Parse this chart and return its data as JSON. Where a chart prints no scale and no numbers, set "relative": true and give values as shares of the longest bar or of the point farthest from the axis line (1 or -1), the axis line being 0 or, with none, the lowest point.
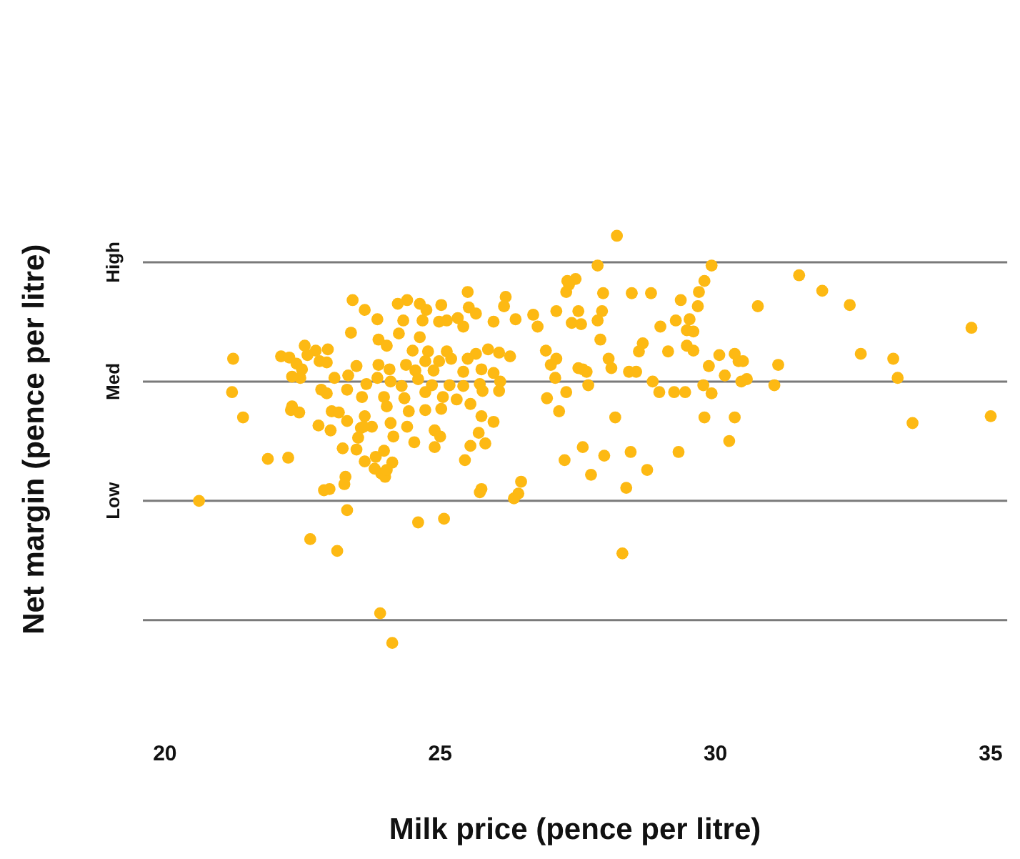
{
  "chart_data": {
    "type": "scatter",
    "xlabel": "Milk price (pence per litre)",
    "ylabel": "Net margin (pence per litre)",
    "xlim": [
      19.6,
      35.3
    ],
    "xticks": [
      20,
      25,
      30,
      35
    ],
    "relative": true,
    "legend": false,
    "marker": "circle",
    "ref_lines": [
      {
        "axis": "y",
        "value": 0.056,
        "label": null,
        "color": "#7a7a7a"
      },
      {
        "axis": "y",
        "value": 0.349,
        "label": "Low",
        "color": "#7a7a7a"
      },
      {
        "axis": "y",
        "value": 0.642,
        "label": "Med",
        "color": "#7a7a7a"
      },
      {
        "axis": "y",
        "value": 0.935,
        "label": "High",
        "color": "#7a7a7a"
      }
    ],
    "series": [
      {
        "color": "#fdb913",
        "x": [
          28.21,
          27.86,
          29.93,
          31.52,
          31.94,
          32.44,
          34.65,
          30.77,
          29.8,
          29.7,
          28.48,
          28.83,
          29.37,
          29.68,
          29.28,
          29.0,
          29.53,
          29.48,
          29.6,
          27.96,
          27.31,
          27.46,
          27.29,
          27.51,
          27.11,
          27.39,
          27.56,
          27.94,
          27.86,
          27.91,
          28.68,
          28.06,
          28.61,
          28.43,
          28.56,
          27.66,
          27.59,
          26.92,
          27.01,
          27.11,
          27.51,
          28.11,
          29.14,
          29.48,
          29.6,
          29.88,
          30.07,
          30.42,
          30.35,
          30.5,
          31.14,
          33.23,
          33.31,
          32.64,
          30.17,
          30.47,
          30.57,
          31.07,
          29.78,
          28.86,
          28.98,
          29.25,
          29.45,
          29.8,
          30.35,
          29.93,
          28.18,
          28.76,
          27.74,
          29.33,
          27.98,
          27.26,
          30.25,
          33.58,
          35.0,
          28.46,
          27.59,
          28.38,
          28.31,
          27.16,
          27.69,
          27.29,
          27.09,
          26.94,
          24.4,
          24.63,
          24.75,
          25.02,
          25.5,
          26.19,
          26.16,
          26.69,
          27.34,
          24.23,
          24.33,
          24.68,
          24.98,
          25.32,
          25.52,
          25.65,
          26.37,
          26.77,
          25.97,
          24.25,
          23.88,
          24.63,
          25.12,
          25.42,
          24.03,
          24.5,
          24.78,
          25.12,
          25.65,
          25.87,
          26.07,
          26.27,
          24.73,
          24.98,
          25.2,
          25.5,
          23.88,
          24.08,
          24.38,
          24.55,
          24.88,
          25.42,
          25.75,
          25.97,
          26.09,
          23.86,
          24.1,
          24.3,
          24.6,
          24.85,
          25.17,
          25.42,
          25.72,
          23.66,
          23.58,
          23.98,
          24.35,
          24.73,
          25.05,
          25.3,
          25.77,
          26.07,
          24.03,
          24.43,
          24.73,
          25.02,
          25.55,
          25.75,
          25.97,
          23.63,
          23.76,
          24.1,
          24.4,
          24.9,
          25.7,
          25.82,
          25.0,
          24.53,
          23.56,
          24.15,
          23.98,
          23.48,
          24.9,
          25.55,
          25.45,
          23.63,
          23.83,
          24.13,
          23.93,
          23.41,
          23.63,
          23.86,
          23.38,
          22.54,
          22.74,
          22.96,
          22.59,
          22.81,
          21.24,
          22.11,
          22.26,
          22.39,
          22.49,
          22.94,
          23.48,
          22.46,
          22.31,
          23.08,
          23.33,
          21.22,
          22.84,
          22.94,
          23.31,
          21.42,
          22.31,
          22.29,
          22.44,
          23.03,
          23.16,
          23.31,
          22.79,
          23.01,
          23.61,
          23.51,
          23.23,
          21.87,
          22.24,
          23.81,
          23.28,
          23.26,
          22.99,
          22.89,
          23.31,
          22.64,
          23.13,
          20.62,
          23.91,
          24.13,
          24.6,
          25.07,
          26.42,
          25.75,
          26.34,
          26.47,
          25.72,
          24.0,
          24.03
        ],
        "values": [
          1,
          0.927,
          0.927,
          0.903,
          0.865,
          0.83,
          0.774,
          0.827,
          0.889,
          0.862,
          0.859,
          0.859,
          0.842,
          0.827,
          0.792,
          0.777,
          0.795,
          0.768,
          0.765,
          0.859,
          0.889,
          0.894,
          0.862,
          0.815,
          0.815,
          0.786,
          0.783,
          0.815,
          0.792,
          0.745,
          0.736,
          0.698,
          0.716,
          0.666,
          0.666,
          0.666,
          0.672,
          0.718,
          0.683,
          0.698,
          0.675,
          0.675,
          0.716,
          0.73,
          0.718,
          0.68,
          0.707,
          0.692,
          0.71,
          0.692,
          0.683,
          0.698,
          0.651,
          0.71,
          0.657,
          0.642,
          0.648,
          0.633,
          0.633,
          0.642,
          0.616,
          0.616,
          0.616,
          0.554,
          0.554,
          0.613,
          0.554,
          0.425,
          0.413,
          0.469,
          0.46,
          0.449,
          0.496,
          0.54,
          0.557,
          0.469,
          0.481,
          0.381,
          0.22,
          0.569,
          0.633,
          0.616,
          0.651,
          0.601,
          0.842,
          0.833,
          0.818,
          0.83,
          0.862,
          0.85,
          0.827,
          0.806,
          0.88,
          0.833,
          0.792,
          0.792,
          0.789,
          0.798,
          0.824,
          0.809,
          0.795,
          0.777,
          0.789,
          0.76,
          0.745,
          0.751,
          0.792,
          0.777,
          0.73,
          0.718,
          0.716,
          0.716,
          0.71,
          0.721,
          0.713,
          0.704,
          0.692,
          0.692,
          0.698,
          0.698,
          0.683,
          0.672,
          0.683,
          0.669,
          0.669,
          0.666,
          0.672,
          0.663,
          0.642,
          0.651,
          0.642,
          0.631,
          0.648,
          0.633,
          0.633,
          0.631,
          0.636,
          0.636,
          0.604,
          0.604,
          0.601,
          0.616,
          0.604,
          0.598,
          0.619,
          0.619,
          0.581,
          0.569,
          0.572,
          0.575,
          0.587,
          0.557,
          0.543,
          0.557,
          0.531,
          0.54,
          0.531,
          0.522,
          0.516,
          0.49,
          0.507,
          0.493,
          0.528,
          0.507,
          0.472,
          0.475,
          0.481,
          0.484,
          0.449,
          0.446,
          0.457,
          0.443,
          0.416,
          0.842,
          0.818,
          0.795,
          0.762,
          0.73,
          0.718,
          0.721,
          0.707,
          0.692,
          0.698,
          0.704,
          0.701,
          0.686,
          0.672,
          0.689,
          0.68,
          0.651,
          0.654,
          0.651,
          0.657,
          0.616,
          0.622,
          0.613,
          0.622,
          0.554,
          0.581,
          0.572,
          0.566,
          0.569,
          0.566,
          0.545,
          0.534,
          0.522,
          0.531,
          0.504,
          0.478,
          0.452,
          0.455,
          0.428,
          0.408,
          0.39,
          0.378,
          0.375,
          0.326,
          0.255,
          0.226,
          0.349,
          0.073,
          0,
          0.296,
          0.305,
          0.367,
          0.378,
          0.355,
          0.396,
          0.37,
          0.408,
          0.425
        ]
      }
    ]
  }
}
